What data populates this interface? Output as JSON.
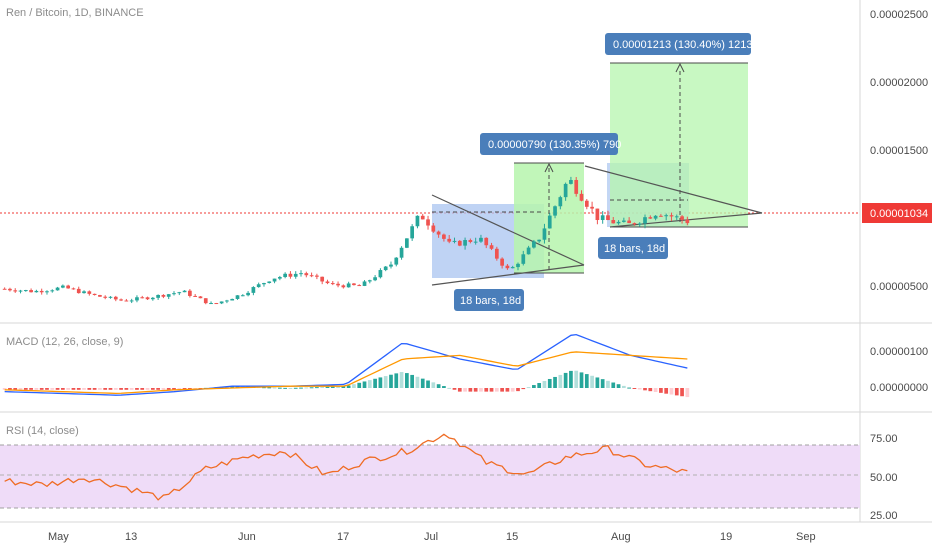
{
  "chart_title": "Ren / Bitcoin, 1D, BINANCE",
  "price_axis": {
    "labels": [
      "0.00002500",
      "0.00002000",
      "0.00001500",
      "0.00000500"
    ],
    "current_price": "0.00001034",
    "current_color": "#ef3a36"
  },
  "macd": {
    "title": "MACD (12, 26, close, 9)",
    "axis_labels": [
      "0.00000100",
      "0.00000000"
    ]
  },
  "rsi": {
    "title": "RSI (14, close)",
    "axis_labels": [
      "75.00",
      "50.00",
      "25.00"
    ],
    "band_color": "#efdcf8"
  },
  "time_axis": {
    "labels": [
      "May",
      "13",
      "Jun",
      "17",
      "Jul",
      "15",
      "Aug",
      "19",
      "Sep"
    ]
  },
  "annotations": {
    "measure_1_label": "0.00000790 (130.35%) 790",
    "measure_2_label": "0.00001213 (130.40%) 1213",
    "bars_1_label": "18 bars, 18d",
    "bars_2_label": "18 bars, 18d"
  },
  "colors": {
    "up": "#26a69a",
    "down": "#ef5350",
    "macd_line": "#2962ff",
    "signal_line": "#ff9800",
    "rsi_line": "#ef6c24",
    "label_bg": "#4a7eba",
    "measure_fill": "#b6f5ad",
    "range_fill": "#a9c4f0"
  },
  "chart_data": [
    {
      "type": "candlestick",
      "title": "Ren / Bitcoin, 1D, BINANCE",
      "x_range": [
        "2019-04-24",
        "2019-09-02"
      ],
      "y_range": [
        3e-06,
        2.62e-05
      ],
      "close_series": [
        {
          "x": "2019-04-25",
          "y": 5.2e-06
        },
        {
          "x": "2019-04-30",
          "y": 5e-06
        },
        {
          "x": "2019-05-05",
          "y": 5.3e-06
        },
        {
          "x": "2019-05-10",
          "y": 4.7e-06
        },
        {
          "x": "2019-05-15",
          "y": 4.3e-06
        },
        {
          "x": "2019-05-20",
          "y": 4.6e-06
        },
        {
          "x": "2019-05-25",
          "y": 5e-06
        },
        {
          "x": "2019-05-30",
          "y": 4e-06
        },
        {
          "x": "2019-06-04",
          "y": 4.8e-06
        },
        {
          "x": "2019-06-09",
          "y": 6e-06
        },
        {
          "x": "2019-06-14",
          "y": 6.4e-06
        },
        {
          "x": "2019-06-19",
          "y": 5.5e-06
        },
        {
          "x": "2019-06-24",
          "y": 5.4e-06
        },
        {
          "x": "2019-06-29",
          "y": 7e-06
        },
        {
          "x": "2019-07-01",
          "y": 1.08e-05
        },
        {
          "x": "2019-07-06",
          "y": 8.5e-06
        },
        {
          "x": "2019-07-11",
          "y": 9e-06
        },
        {
          "x": "2019-07-16",
          "y": 6.5e-06
        },
        {
          "x": "2019-07-21",
          "y": 9e-06
        },
        {
          "x": "2019-07-26",
          "y": 1.35e-05
        },
        {
          "x": "2019-07-31",
          "y": 1.05e-05
        },
        {
          "x": "2019-08-05",
          "y": 1e-05
        },
        {
          "x": "2019-08-10",
          "y": 1.1e-05
        },
        {
          "x": "2019-08-15",
          "y": 1.03e-05
        }
      ],
      "ohlc_note": "approximate daily candles read from chart"
    },
    {
      "type": "line",
      "title": "MACD (12, 26, close, 9)",
      "series": [
        {
          "name": "MACD",
          "values": [
            -1e-07,
            -1.5e-07,
            -2e-07,
            -1e-07,
            5e-08,
            5e-08,
            1e-07,
            1.25e-06,
            8e-07,
            5e-07,
            1.5e-06,
            9e-07,
            5.5e-07
          ]
        },
        {
          "name": "Signal",
          "values": [
            -5e-08,
            -1e-07,
            -1.5e-07,
            -5e-08,
            0.0,
            5e-08,
            5e-08,
            8e-07,
            9e-07,
            6e-07,
            1e-06,
            9e-07,
            8e-07
          ]
        }
      ]
    },
    {
      "type": "line",
      "title": "RSI (14, close)",
      "ylim": [
        20,
        85
      ],
      "series": [
        {
          "name": "RSI",
          "values": [
            45,
            42,
            48,
            40,
            30,
            55,
            65,
            70,
            50,
            62,
            70,
            85,
            60,
            50,
            65,
            72,
            58,
            52
          ]
        }
      ]
    }
  ]
}
